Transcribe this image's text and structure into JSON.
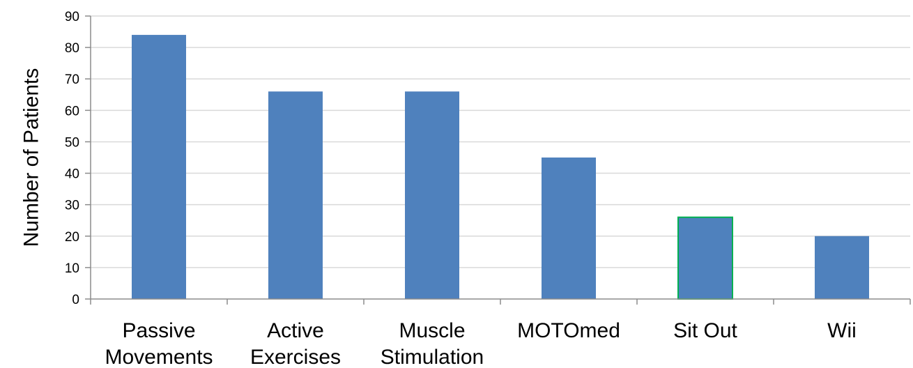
{
  "chart_data": {
    "type": "bar",
    "title": "",
    "xlabel": "",
    "ylabel": "Number of Patients",
    "ylim": [
      0,
      90
    ],
    "yticks": [
      0,
      10,
      20,
      30,
      40,
      50,
      60,
      70,
      80,
      90
    ],
    "grid": true,
    "legend": "none",
    "categories": [
      [
        "Passive",
        "Movements"
      ],
      [
        "Active",
        "Exercises"
      ],
      [
        "Muscle",
        "Stimulation"
      ],
      [
        "MOTOmed"
      ],
      [
        "Sit Out"
      ],
      [
        "Wii"
      ]
    ],
    "values": [
      84,
      66,
      66,
      45,
      26,
      20
    ],
    "bar_color": "#4f81bd",
    "highlight_border": {
      "index": 4,
      "color": "#00b050"
    }
  }
}
